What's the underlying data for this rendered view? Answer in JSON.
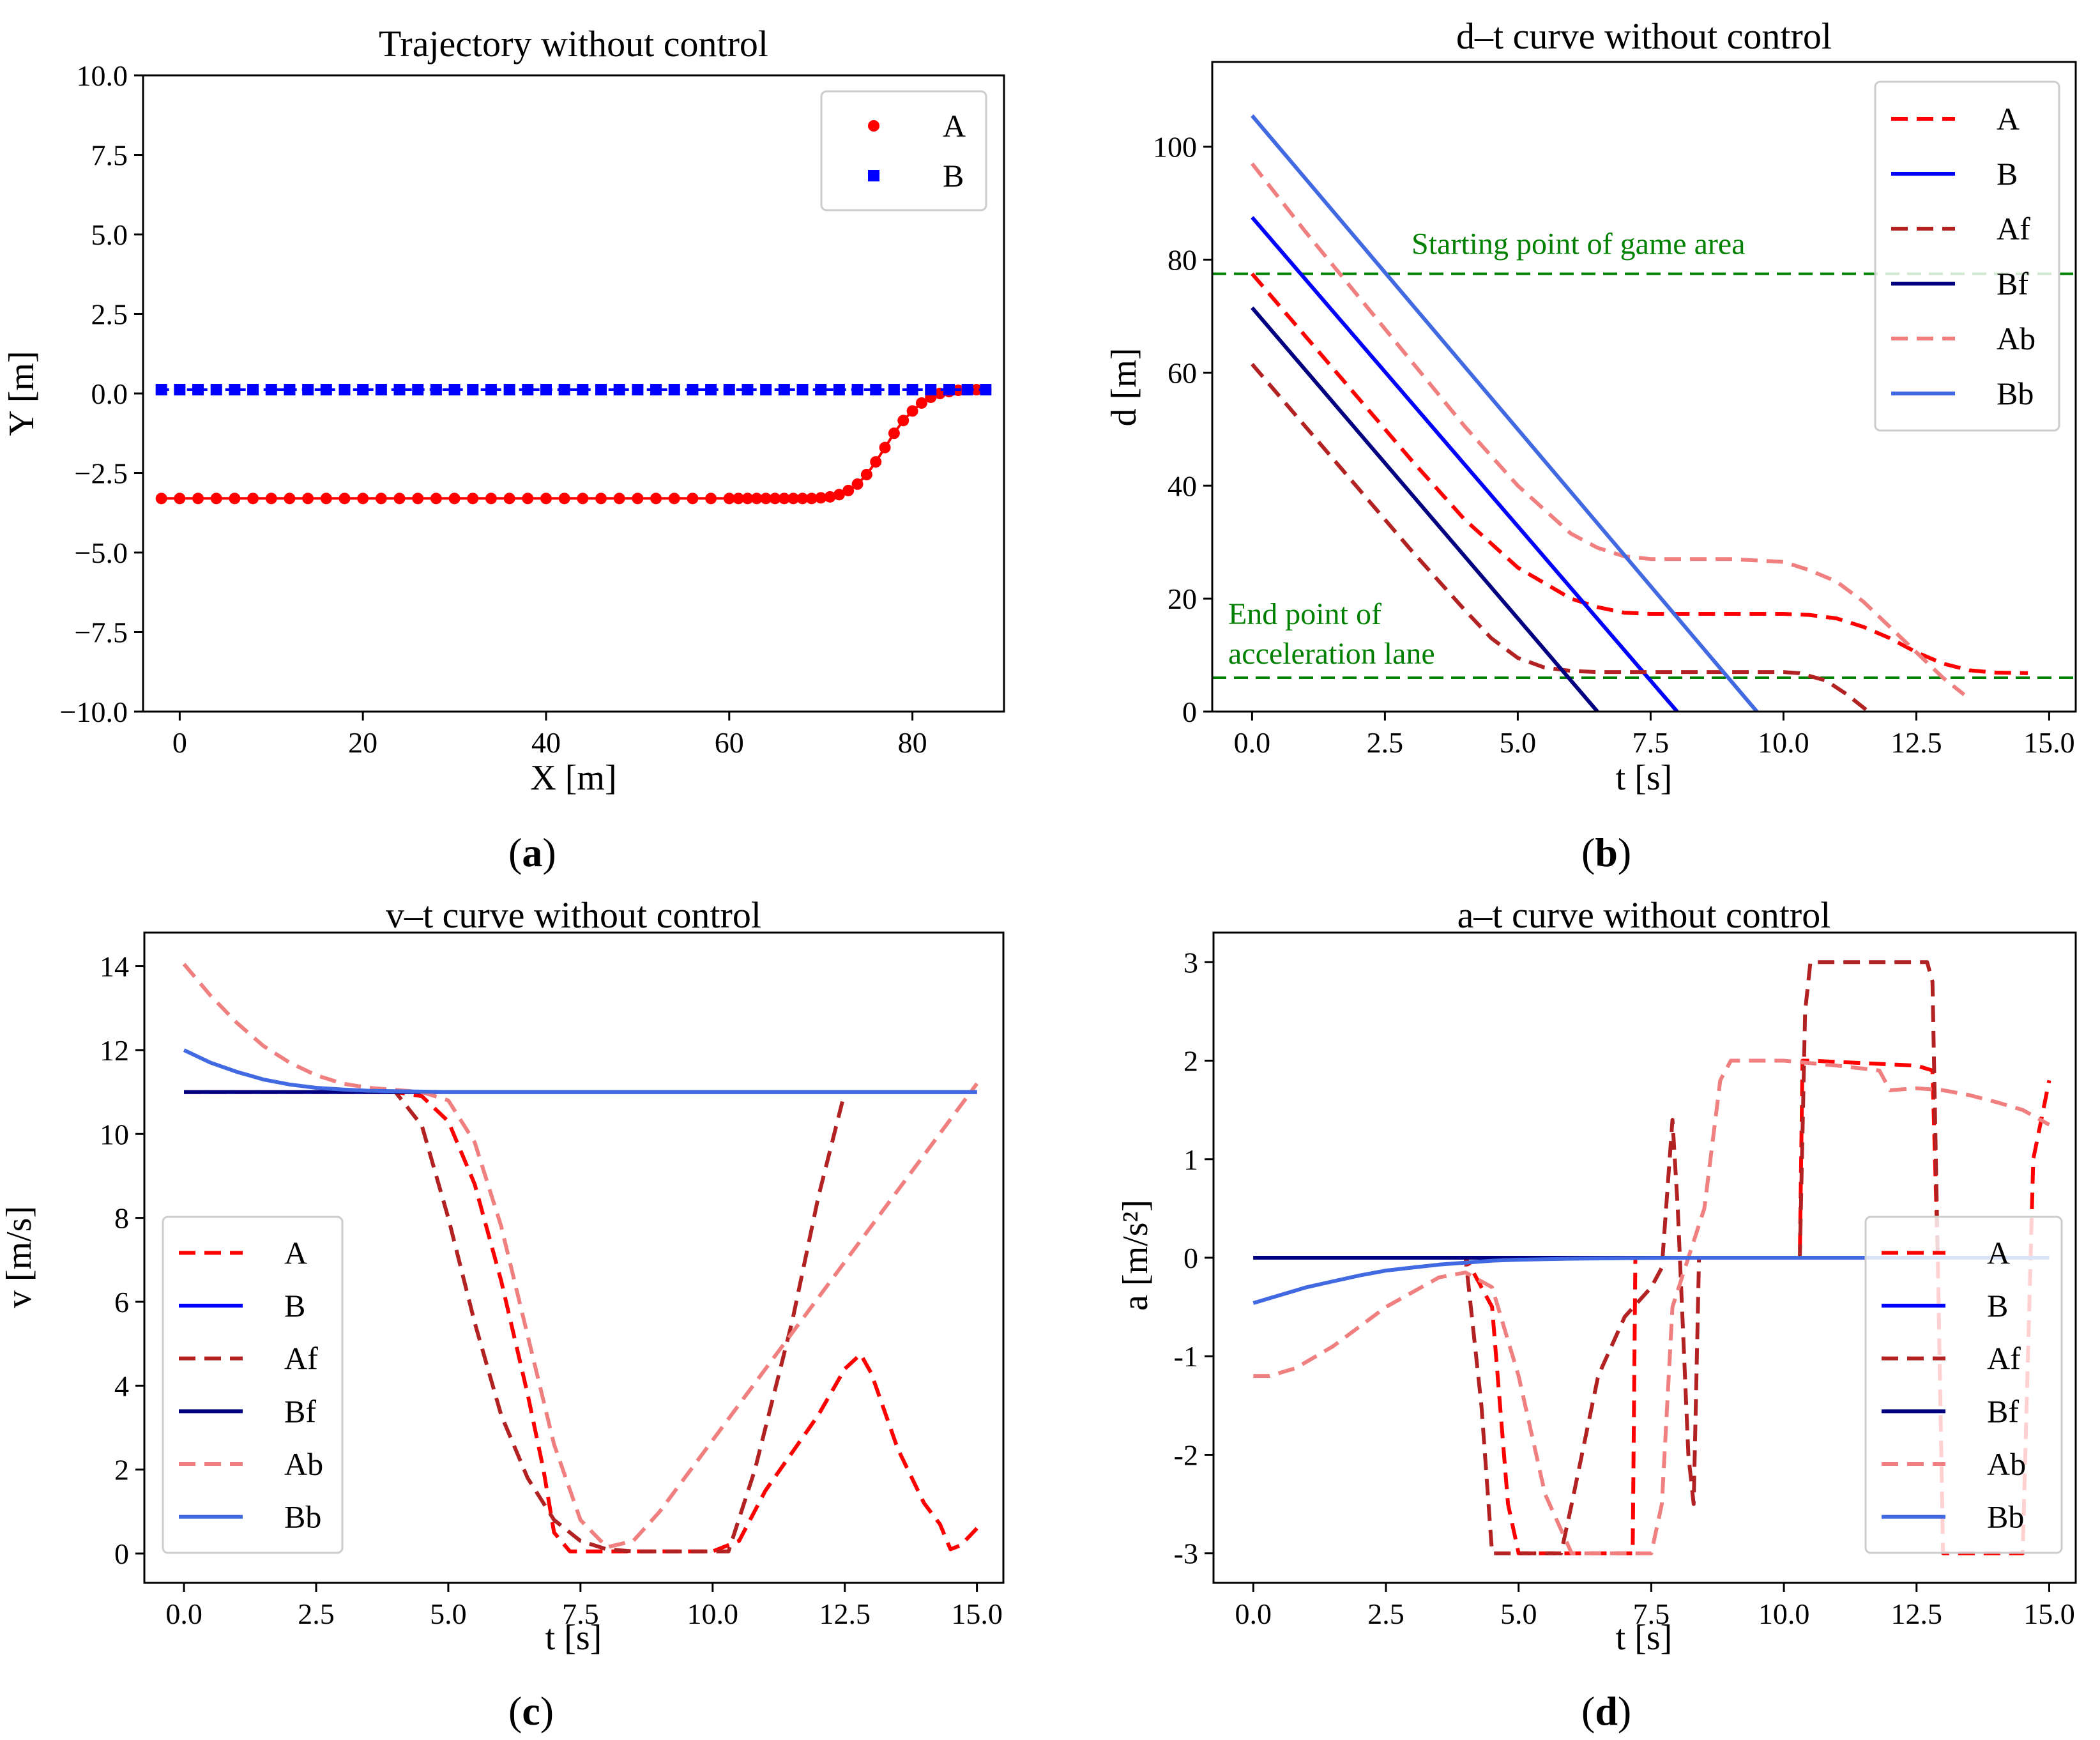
{
  "colors": {
    "A": "#ff0000",
    "B": "#0000ff",
    "Af": "#b22222",
    "Bf": "#000080",
    "Ab": "#f08080",
    "Bb": "#4169e1",
    "ref": "#008000",
    "frame": "#000000"
  },
  "chart_data": [
    {
      "id": "a",
      "type": "scatter",
      "caption": "a",
      "title": "Trajectory without control",
      "xlabel": "X [m]",
      "ylabel": "Y [m]",
      "xlim": [
        -4,
        90
      ],
      "ylim": [
        -10,
        10
      ],
      "xticks": [
        0,
        20,
        40,
        60,
        80
      ],
      "xtick_labels": [
        "0",
        "20",
        "40",
        "60",
        "80"
      ],
      "yticks": [
        -10,
        -7.5,
        -5,
        -2.5,
        0,
        2.5,
        5,
        7.5,
        10
      ],
      "ytick_labels": [
        "−10.0",
        "−7.5",
        "−5.0",
        "−2.5",
        "0.0",
        "2.5",
        "5.0",
        "7.5",
        "10.0"
      ],
      "legend_position": "top-right",
      "series": [
        {
          "name": "A",
          "color_key": "A",
          "marker": "circle",
          "line": "solid",
          "x": [
            -2,
            0,
            2,
            4,
            6,
            8,
            10,
            12,
            14,
            16,
            18,
            20,
            22,
            24,
            26,
            28,
            30,
            32,
            34,
            36,
            38,
            40,
            42,
            44,
            46,
            48,
            50,
            52,
            54,
            56,
            58,
            60,
            61,
            62,
            63,
            64,
            65,
            66,
            67,
            68,
            69,
            70,
            71,
            72,
            73,
            74,
            75,
            76,
            77,
            78,
            79,
            80,
            81,
            82,
            83,
            84,
            85,
            86,
            87,
            88
          ],
          "y": [
            -3.3,
            -3.3,
            -3.3,
            -3.3,
            -3.3,
            -3.3,
            -3.3,
            -3.3,
            -3.3,
            -3.3,
            -3.3,
            -3.3,
            -3.3,
            -3.3,
            -3.3,
            -3.3,
            -3.3,
            -3.3,
            -3.3,
            -3.3,
            -3.3,
            -3.3,
            -3.3,
            -3.3,
            -3.3,
            -3.3,
            -3.3,
            -3.3,
            -3.3,
            -3.3,
            -3.3,
            -3.3,
            -3.3,
            -3.3,
            -3.3,
            -3.3,
            -3.3,
            -3.3,
            -3.3,
            -3.3,
            -3.3,
            -3.28,
            -3.25,
            -3.18,
            -3.05,
            -2.85,
            -2.55,
            -2.15,
            -1.7,
            -1.25,
            -0.85,
            -0.55,
            -0.3,
            -0.12,
            0,
            0.06,
            0.1,
            0.12,
            0.12,
            0.12
          ]
        },
        {
          "name": "B",
          "color_key": "B",
          "marker": "square",
          "line": "dashed",
          "x": [
            -2,
            0,
            2,
            4,
            6,
            8,
            10,
            12,
            14,
            16,
            18,
            20,
            22,
            24,
            26,
            28,
            30,
            32,
            34,
            36,
            38,
            40,
            42,
            44,
            46,
            48,
            50,
            52,
            54,
            56,
            58,
            60,
            62,
            64,
            66,
            68,
            70,
            72,
            74,
            76,
            78,
            80,
            82,
            84,
            86,
            88
          ],
          "y": [
            0.12,
            0.12,
            0.12,
            0.12,
            0.12,
            0.12,
            0.12,
            0.12,
            0.12,
            0.12,
            0.12,
            0.12,
            0.12,
            0.12,
            0.12,
            0.12,
            0.12,
            0.12,
            0.12,
            0.12,
            0.12,
            0.12,
            0.12,
            0.12,
            0.12,
            0.12,
            0.12,
            0.12,
            0.12,
            0.12,
            0.12,
            0.12,
            0.12,
            0.12,
            0.12,
            0.12,
            0.12,
            0.12,
            0.12,
            0.12,
            0.12,
            0.12,
            0.12,
            0.12,
            0.12,
            0.12
          ]
        }
      ]
    },
    {
      "id": "b",
      "type": "line",
      "caption": "b",
      "title": "d–t curve without control",
      "xlabel": "t [s]",
      "ylabel": "d [m]",
      "xlim": [
        -0.75,
        15.5
      ],
      "ylim": [
        0,
        115
      ],
      "xticks": [
        0,
        2.5,
        5,
        7.5,
        10,
        12.5,
        15
      ],
      "xtick_labels": [
        "0.0",
        "2.5",
        "5.0",
        "7.5",
        "10.0",
        "12.5",
        "15.0"
      ],
      "yticks": [
        0,
        20,
        40,
        60,
        80,
        100
      ],
      "ytick_labels": [
        "0",
        "20",
        "40",
        "60",
        "80",
        "100"
      ],
      "legend_position": "top-right",
      "reference_lines": [
        {
          "y": 77.5,
          "label": "Starting point of game area",
          "label_x": 3.0,
          "label_y": 81
        },
        {
          "y": 6,
          "label": "End point of",
          "label2": "acceleration lane",
          "label_x": -0.45,
          "label_y": 15.5,
          "label2_y": 8.5
        }
      ],
      "series": [
        {
          "name": "A",
          "color_key": "A",
          "style": "dashed",
          "x": [
            0,
            1,
            2,
            3,
            4,
            5,
            6,
            6.5,
            7,
            7.5,
            8,
            9,
            10,
            10.5,
            11,
            11.5,
            12,
            12.5,
            13,
            13.5,
            14,
            14.6
          ],
          "y": [
            77.5,
            66.5,
            55.5,
            44.5,
            34,
            25.5,
            20,
            18.5,
            17.5,
            17.3,
            17.3,
            17.3,
            17.3,
            17.1,
            16.5,
            15,
            13,
            10.5,
            8.5,
            7.3,
            6.9,
            6.8
          ]
        },
        {
          "name": "B",
          "color_key": "B",
          "style": "solid",
          "x": [
            0,
            8
          ],
          "y": [
            87.5,
            0
          ]
        },
        {
          "name": "Af",
          "color_key": "Af",
          "style": "dashed",
          "x": [
            0,
            1,
            2,
            3,
            4,
            4.5,
            5,
            5.5,
            6,
            6.5,
            7,
            8,
            9,
            10,
            10.3,
            10.8,
            11.2,
            11.6
          ],
          "y": [
            61.5,
            50.5,
            39.5,
            28.5,
            18,
            13,
            9.5,
            7.8,
            7.2,
            7,
            7,
            7,
            7,
            7,
            6.8,
            5.5,
            3,
            0
          ]
        },
        {
          "name": "Bf",
          "color_key": "Bf",
          "style": "solid",
          "x": [
            0,
            6.5
          ],
          "y": [
            71.5,
            0
          ]
        },
        {
          "name": "Ab",
          "color_key": "Ab",
          "style": "dashed",
          "x": [
            0,
            1,
            2,
            3,
            4,
            5,
            6,
            6.5,
            7,
            7.5,
            8,
            9,
            10,
            10.5,
            11,
            11.5,
            12,
            12.5,
            13,
            13.4
          ],
          "y": [
            97,
            85,
            73.5,
            62,
            50.5,
            40,
            31.5,
            29,
            27.5,
            27,
            27,
            27,
            26.5,
            25,
            23,
            19.5,
            15,
            10.5,
            6,
            3
          ]
        },
        {
          "name": "Bb",
          "color_key": "Bb",
          "style": "solid",
          "x": [
            0,
            9.5
          ],
          "y": [
            105.5,
            0
          ]
        }
      ]
    },
    {
      "id": "c",
      "type": "line",
      "caption": "c",
      "title": "v–t curve without control",
      "xlabel": "t [s]",
      "ylabel": "v [m/s]",
      "xlim": [
        -0.75,
        15.5
      ],
      "ylim": [
        -0.7,
        14.8
      ],
      "xticks": [
        0,
        2.5,
        5,
        7.5,
        10,
        12.5,
        15
      ],
      "xtick_labels": [
        "0.0",
        "2.5",
        "5.0",
        "7.5",
        "10.0",
        "12.5",
        "15.0"
      ],
      "yticks": [
        0,
        2,
        4,
        6,
        8,
        10,
        12,
        14
      ],
      "ytick_labels": [
        "0",
        "2",
        "4",
        "6",
        "8",
        "10",
        "12",
        "14"
      ],
      "legend_position": "center-left",
      "series": [
        {
          "name": "A",
          "color_key": "A",
          "style": "dashed",
          "x": [
            0,
            4,
            4.5,
            5,
            5.5,
            6,
            6.5,
            6.8,
            7,
            7.3,
            8,
            9,
            10,
            10.5,
            11,
            12,
            12.5,
            12.8,
            13,
            13.5,
            14,
            14.3,
            14.5,
            14.7,
            15
          ],
          "y": [
            11,
            11,
            10.9,
            10.3,
            8.8,
            6.5,
            3.8,
            2,
            0.5,
            0.05,
            0.05,
            0.05,
            0.05,
            0.3,
            1.5,
            3.3,
            4.4,
            4.75,
            4.3,
            2.5,
            1.2,
            0.7,
            0.1,
            0.2,
            0.6
          ]
        },
        {
          "name": "B",
          "color_key": "B",
          "style": "solid",
          "x": [
            0,
            15
          ],
          "y": [
            11,
            11
          ]
        },
        {
          "name": "Af",
          "color_key": "Af",
          "style": "dashed",
          "x": [
            0,
            4,
            4.5,
            5,
            5.5,
            6,
            6.5,
            7,
            7.5,
            8,
            8.5,
            9,
            9.5,
            10,
            10.3,
            10.8,
            11.5,
            12,
            12.5
          ],
          "y": [
            11,
            11,
            10.2,
            8,
            5.5,
            3.3,
            1.8,
            0.8,
            0.3,
            0.1,
            0.05,
            0.05,
            0.05,
            0.05,
            0.05,
            2,
            5.5,
            8.5,
            11
          ]
        },
        {
          "name": "Bf",
          "color_key": "Bf",
          "style": "solid",
          "x": [
            0,
            15
          ],
          "y": [
            11,
            11
          ]
        },
        {
          "name": "Ab",
          "color_key": "Ab",
          "style": "dashed",
          "x": [
            0,
            0.5,
            1,
            1.5,
            2,
            2.5,
            3,
            3.5,
            4,
            4.5,
            5,
            5.5,
            6,
            6.5,
            7,
            7.5,
            8,
            8.5,
            9,
            10,
            11,
            12,
            13,
            14,
            15
          ],
          "y": [
            14.05,
            13.3,
            12.65,
            12.1,
            11.7,
            11.4,
            11.2,
            11.1,
            11.05,
            11,
            10.8,
            9.8,
            7.8,
            5.2,
            2.6,
            0.8,
            0.15,
            0.3,
            1,
            2.7,
            4.4,
            6.1,
            7.8,
            9.5,
            11.2
          ]
        },
        {
          "name": "Bb",
          "color_key": "Bb",
          "style": "solid",
          "x": [
            0,
            0.5,
            1,
            1.5,
            2,
            2.5,
            3,
            3.5,
            4,
            5,
            6,
            8,
            10,
            15
          ],
          "y": [
            12,
            11.7,
            11.48,
            11.3,
            11.18,
            11.1,
            11.06,
            11.03,
            11.02,
            11,
            11,
            11,
            11,
            11
          ]
        }
      ]
    },
    {
      "id": "d",
      "type": "line",
      "caption": "d",
      "title": "a–t curve without control",
      "xlabel": "t [s]",
      "ylabel": "a [m/s²]",
      "xlim": [
        -0.75,
        15.5
      ],
      "ylim": [
        -3.3,
        3.3
      ],
      "xticks": [
        0,
        2.5,
        5,
        7.5,
        10,
        12.5,
        15
      ],
      "xtick_labels": [
        "0.0",
        "2.5",
        "5.0",
        "7.5",
        "10.0",
        "12.5",
        "15.0"
      ],
      "yticks": [
        -3,
        -2,
        -1,
        0,
        1,
        2,
        3
      ],
      "ytick_labels": [
        "-3",
        "-2",
        "-1",
        "0",
        "1",
        "2",
        "3"
      ],
      "legend_position": "right",
      "series": [
        {
          "name": "A",
          "color_key": "A",
          "style": "dashed",
          "x": [
            0,
            4,
            4.5,
            4.8,
            5,
            6,
            7,
            7.15,
            7.2,
            7.5,
            10,
            10.3,
            10.35,
            10.5,
            12.5,
            12.8,
            12.9,
            13,
            13.5,
            14,
            14.5,
            14.7,
            15
          ],
          "y": [
            0,
            0,
            -0.5,
            -2.5,
            -3,
            -3,
            -3,
            -3,
            0,
            0,
            0,
            0,
            2,
            2,
            1.95,
            1.9,
            0,
            -3,
            -3,
            -3,
            -3,
            1,
            1.8
          ]
        },
        {
          "name": "B",
          "color_key": "B",
          "style": "solid",
          "x": [
            0,
            15
          ],
          "y": [
            0,
            0
          ]
        },
        {
          "name": "Af",
          "color_key": "Af",
          "style": "dashed",
          "x": [
            0,
            4,
            4.3,
            4.5,
            5,
            5.8,
            6,
            6.5,
            7,
            7.5,
            7.7,
            7.9,
            8,
            8.2,
            8.3,
            8.4,
            10.3,
            10.4,
            10.5,
            12.7,
            12.8,
            12.9
          ],
          "y": [
            0,
            0,
            -1.5,
            -3,
            -3,
            -3,
            -2.5,
            -1.2,
            -0.6,
            -0.3,
            -0.1,
            1.4,
            0.5,
            -2,
            -2.5,
            0,
            0,
            2.5,
            3,
            3,
            2.8,
            0
          ]
        },
        {
          "name": "Bf",
          "color_key": "Bf",
          "style": "solid",
          "x": [
            0,
            15
          ],
          "y": [
            0,
            0
          ]
        },
        {
          "name": "Ab",
          "color_key": "Ab",
          "style": "dashed",
          "x": [
            0,
            0.3,
            0.8,
            1.5,
            2.5,
            3.5,
            4,
            4.5,
            5,
            5.5,
            6,
            7,
            7.5,
            7.7,
            7.9,
            8.2,
            8.5,
            8.8,
            9,
            10,
            11,
            11.8,
            12,
            12.5,
            13,
            13.5,
            14,
            14.5,
            15
          ],
          "y": [
            -1.2,
            -1.2,
            -1.12,
            -0.9,
            -0.5,
            -0.2,
            -0.15,
            -0.3,
            -1.2,
            -2.4,
            -3,
            -3,
            -3,
            -2.5,
            -0.5,
            0,
            0.5,
            1.8,
            2,
            2,
            1.95,
            1.9,
            1.7,
            1.72,
            1.7,
            1.65,
            1.58,
            1.5,
            1.35
          ]
        },
        {
          "name": "Bb",
          "color_key": "Bb",
          "style": "solid",
          "x": [
            0,
            0.5,
            1,
            1.5,
            2,
            2.5,
            3,
            3.5,
            4,
            4.5,
            5,
            6,
            8,
            15
          ],
          "y": [
            -0.46,
            -0.38,
            -0.3,
            -0.24,
            -0.18,
            -0.13,
            -0.1,
            -0.07,
            -0.05,
            -0.03,
            -0.02,
            -0.01,
            0,
            0
          ]
        }
      ]
    }
  ]
}
